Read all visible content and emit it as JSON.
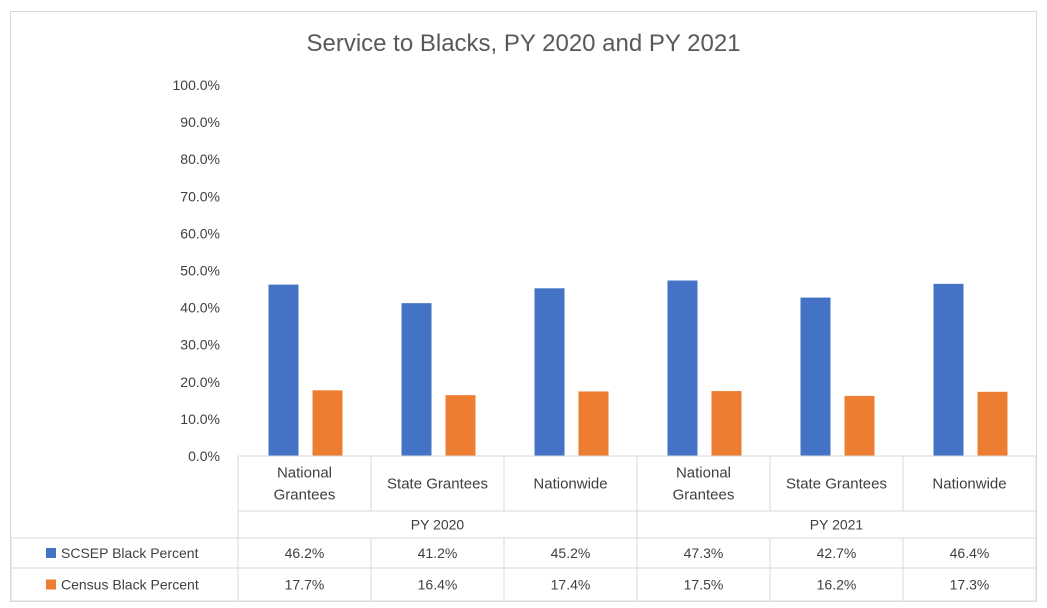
{
  "chart_data": {
    "type": "bar",
    "title": "Service to Blacks, PY 2020 and PY 2021",
    "ylim": [
      0,
      100
    ],
    "yticks": [
      "0.0%",
      "10.0%",
      "20.0%",
      "30.0%",
      "40.0%",
      "50.0%",
      "60.0%",
      "70.0%",
      "80.0%",
      "90.0%",
      "100.0%"
    ],
    "groups": [
      "PY 2020",
      "PY 2021"
    ],
    "categories": [
      [
        "National",
        "Grantees"
      ],
      [
        "State Grantees"
      ],
      [
        "Nationwide"
      ],
      [
        "National",
        "Grantees"
      ],
      [
        "State Grantees"
      ],
      [
        "Nationwide"
      ]
    ],
    "series": [
      {
        "name": "SCSEP Black Percent",
        "color": "#4472c4",
        "values": [
          46.2,
          41.2,
          45.2,
          47.3,
          42.7,
          46.4
        ],
        "labels": [
          "46.2%",
          "41.2%",
          "45.2%",
          "47.3%",
          "42.7%",
          "46.4%"
        ]
      },
      {
        "name": "Census Black Percent",
        "color": "#ed7d31",
        "values": [
          17.7,
          16.4,
          17.4,
          17.5,
          16.2,
          17.3
        ],
        "labels": [
          "17.7%",
          "16.4%",
          "17.4%",
          "17.5%",
          "16.2%",
          "17.3%"
        ]
      }
    ],
    "grid": false,
    "data_table": true
  }
}
